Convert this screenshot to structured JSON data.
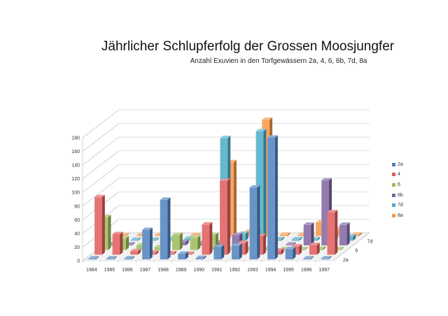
{
  "title": "Jährlicher Schlupferfolg der Grossen Moosjungfer",
  "subtitle": "Anzahl Exuvien in den Torfgewässern 2a, 4, 6, 6b, 7d, 8a",
  "legend": [
    {
      "label": "2a",
      "color": "#4f81bd"
    },
    {
      "label": "4",
      "color": "#e05a5a"
    },
    {
      "label": "6",
      "color": "#9bbb59"
    },
    {
      "label": "6b",
      "color": "#8064a2"
    },
    {
      "label": "7d",
      "color": "#4bacc6"
    },
    {
      "label": "8a",
      "color": "#f79646"
    }
  ],
  "chart_data": {
    "type": "bar",
    "subtype": "3d-clustered-depth",
    "title": "Jährlicher Schlupferfolg der Grossen Moosjungfer",
    "subtitle": "Anzahl Exuvien in den Torfgewässern 2a, 4, 6, 6b, 7d, 8a",
    "xlabel": "",
    "ylabel": "",
    "ylim": [
      0,
      180
    ],
    "yticks": [
      0,
      20,
      40,
      60,
      80,
      100,
      120,
      140,
      160,
      180
    ],
    "grid": true,
    "legend_position": "right",
    "depth_axis_labels": [
      "2a",
      "6",
      "7d"
    ],
    "categories": [
      "1984",
      "1985",
      "1986",
      "1987",
      "1988",
      "1989",
      "1990",
      "1991",
      "1992",
      "1993",
      "1994",
      "1995",
      "1996",
      "1997"
    ],
    "series": [
      {
        "name": "2a",
        "color": "#4f81bd",
        "values": [
          0,
          0,
          1,
          43,
          87,
          8,
          2,
          18,
          20,
          105,
          178,
          15,
          0,
          0
        ]
      },
      {
        "name": "4",
        "color": "#e05a5a",
        "values": [
          84,
          30,
          5,
          3,
          2,
          0,
          44,
          108,
          17,
          27,
          6,
          12,
          14,
          62
        ]
      },
      {
        "name": "6",
        "color": "#9bbb59",
        "values": [
          48,
          17,
          7,
          4,
          22,
          18,
          22,
          0,
          0,
          0,
          0,
          0,
          2,
          0
        ]
      },
      {
        "name": "6b",
        "color": "#8064a2",
        "values": [
          0,
          0,
          0,
          0,
          5,
          3,
          4,
          15,
          20,
          0,
          0,
          30,
          95,
          30
        ]
      },
      {
        "name": "7d",
        "color": "#4bacc6",
        "values": [
          0,
          0,
          0,
          2,
          3,
          2,
          150,
          10,
          160,
          2,
          2,
          2,
          10,
          6
        ]
      },
      {
        "name": "8a",
        "color": "#f79646",
        "values": [
          0,
          0,
          0,
          0,
          0,
          0,
          108,
          6,
          170,
          2,
          2,
          20,
          10,
          2
        ]
      }
    ]
  }
}
